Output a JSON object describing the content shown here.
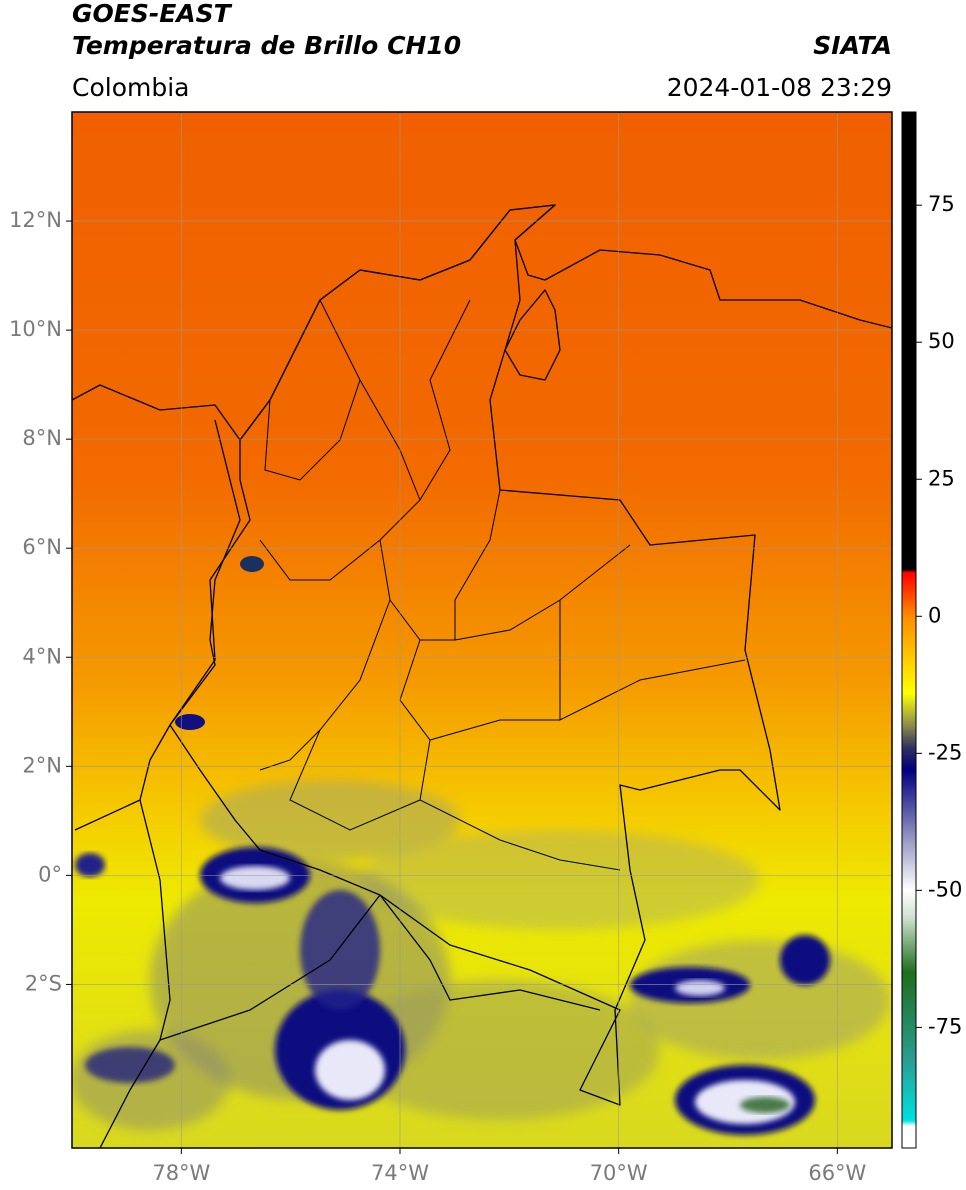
{
  "header": {
    "satellite": "GOES-EAST",
    "product": "Temperatura de Brillo CH10",
    "source": "SIATA",
    "region": "Colombia",
    "datetime": "2024-01-08 23:29"
  },
  "map": {
    "lonlim": [
      -80,
      -65
    ],
    "latlim": [
      -5,
      14
    ],
    "lonticks": [
      {
        "value": -78,
        "label": "78°W"
      },
      {
        "value": -74,
        "label": "74°W"
      },
      {
        "value": -70,
        "label": "70°W"
      },
      {
        "value": -66,
        "label": "66°W"
      }
    ],
    "latticks": [
      {
        "value": 12,
        "label": "12°N"
      },
      {
        "value": 10,
        "label": "10°N"
      },
      {
        "value": 8,
        "label": "8°N"
      },
      {
        "value": 6,
        "label": "6°N"
      },
      {
        "value": 4,
        "label": "4°N"
      },
      {
        "value": 2,
        "label": "2°N"
      },
      {
        "value": 0,
        "label": "0°"
      },
      {
        "value": -2,
        "label": "2°S"
      }
    ],
    "grid": true
  },
  "colorbar": {
    "range": [
      -97,
      92
    ],
    "ticks": [
      75,
      50,
      25,
      0,
      -25,
      -50,
      -75
    ],
    "stops": [
      {
        "value": -97,
        "color": "#ffffff"
      },
      {
        "value": -93,
        "color": "#ffffff"
      },
      {
        "value": -92,
        "color": "#00e0e0"
      },
      {
        "value": -80,
        "color": "#2a9a8a"
      },
      {
        "value": -65,
        "color": "#1d6e1d"
      },
      {
        "value": -55,
        "color": "#cfe0cf"
      },
      {
        "value": -50,
        "color": "#ffffff"
      },
      {
        "value": -40,
        "color": "#9090c0"
      },
      {
        "value": -28,
        "color": "#000080"
      },
      {
        "value": -24,
        "color": "#303060"
      },
      {
        "value": -20,
        "color": "#8a8a50"
      },
      {
        "value": -14,
        "color": "#ffff00"
      },
      {
        "value": 0,
        "color": "#ff8c00"
      },
      {
        "value": 8,
        "color": "#ff0000"
      },
      {
        "value": 8.5,
        "color": "#000000"
      },
      {
        "value": 92,
        "color": "#000000"
      }
    ]
  }
}
